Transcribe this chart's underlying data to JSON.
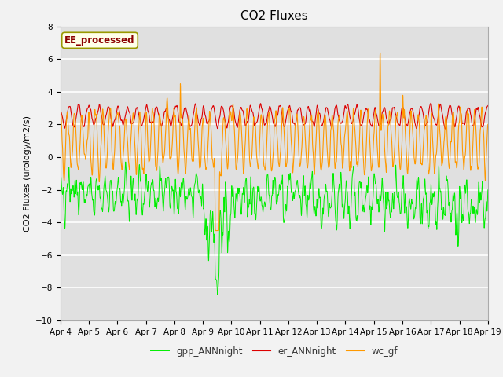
{
  "title": "CO2 Fluxes",
  "ylabel": "CO2 Fluxes (urology/m2/s)",
  "xlabel": "",
  "ylim": [
    -10,
    8
  ],
  "yticks": [
    -10,
    -8,
    -6,
    -4,
    -2,
    0,
    2,
    4,
    6,
    8
  ],
  "date_labels": [
    "Apr 4",
    "Apr 5",
    "Apr 6",
    "Apr 7",
    "Apr 8",
    "Apr 9",
    "Apr 10",
    "Apr 11",
    "Apr 12",
    "Apr 13",
    "Apr 14",
    "Apr 15",
    "Apr 16",
    "Apr 17",
    "Apr 18",
    "Apr 19"
  ],
  "line_colors": {
    "gpp": "#00ee00",
    "er": "#dd0000",
    "wc": "#ff9900"
  },
  "legend_label": "EE_processed",
  "legend_text_color": "#8b0000",
  "legend_box_facecolor": "#ffffe8",
  "legend_box_edgecolor": "#999900",
  "fig_facecolor": "#f2f2f2",
  "plot_facecolor": "#e0e0e0",
  "grid_color": "#ffffff",
  "n_points": 2880,
  "days": 15,
  "title_fontsize": 11,
  "label_fontsize": 8,
  "tick_fontsize": 7.5,
  "linewidth_gpp": 0.7,
  "linewidth_er": 0.8,
  "linewidth_wc": 0.8
}
